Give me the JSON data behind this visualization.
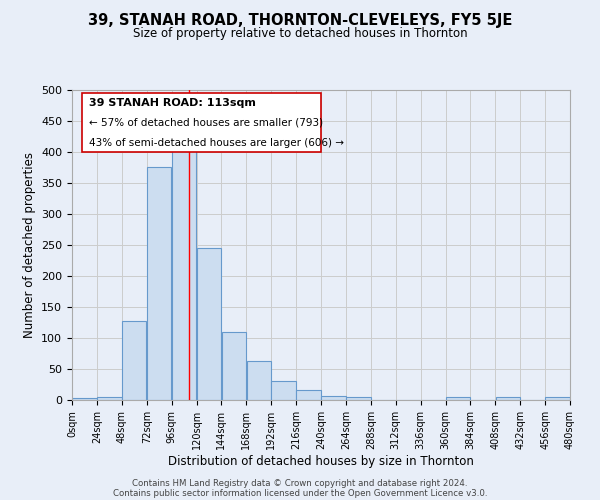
{
  "title": "39, STANAH ROAD, THORNTON-CLEVELEYS, FY5 5JE",
  "subtitle": "Size of property relative to detached houses in Thornton",
  "xlabel": "Distribution of detached houses by size in Thornton",
  "ylabel": "Number of detached properties",
  "bin_edges": [
    0,
    24,
    48,
    72,
    96,
    120,
    144,
    168,
    192,
    216,
    240,
    264,
    288,
    312,
    336,
    360,
    384,
    408,
    432,
    456,
    480
  ],
  "bar_heights": [
    4,
    5,
    128,
    375,
    418,
    245,
    110,
    63,
    31,
    16,
    7,
    5,
    0,
    0,
    0,
    5,
    0,
    5,
    0,
    5
  ],
  "bar_color": "#ccddf0",
  "bar_edge_color": "#6699cc",
  "red_line_x": 113,
  "annotation_line1": "39 STANAH ROAD: 113sqm",
  "annotation_line2": "← 57% of detached houses are smaller (793)",
  "annotation_line3": "43% of semi-detached houses are larger (606) →",
  "ylim": [
    0,
    500
  ],
  "xlim": [
    0,
    480
  ],
  "yticks": [
    0,
    50,
    100,
    150,
    200,
    250,
    300,
    350,
    400,
    450,
    500
  ],
  "grid_color": "#cccccc",
  "background_color": "#e8eef8",
  "footer_line1": "Contains HM Land Registry data © Crown copyright and database right 2024.",
  "footer_line2": "Contains public sector information licensed under the Open Government Licence v3.0."
}
